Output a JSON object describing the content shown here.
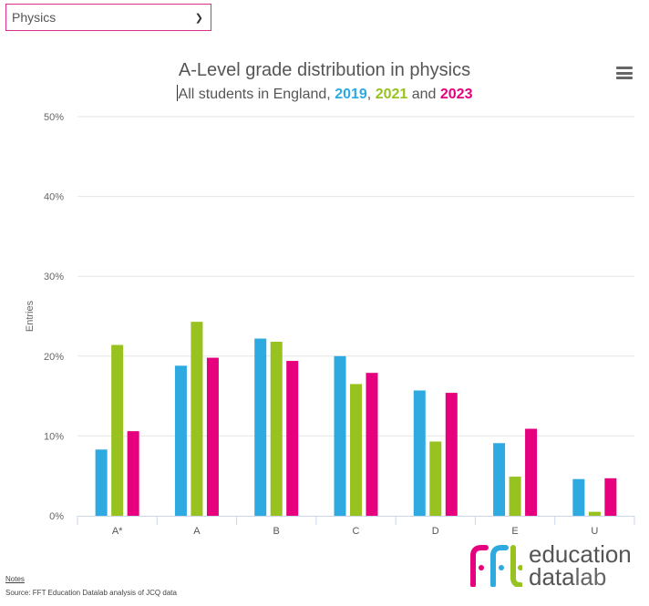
{
  "selector": {
    "value": "Physics"
  },
  "menu_icon": "hamburger-menu-icon",
  "chart_data": {
    "type": "bar",
    "title": "A-Level grade distribution in physics",
    "subtitle_prefix": "All students in England, ",
    "subtitle_sep1": ", ",
    "subtitle_sep2": " and ",
    "xlabel": "",
    "ylabel": "Entries",
    "ylim": [
      0,
      50
    ],
    "yticks": [
      0,
      10,
      20,
      30,
      40,
      50
    ],
    "ytick_labels": [
      "0%",
      "10%",
      "20%",
      "30%",
      "40%",
      "50%"
    ],
    "grid": true,
    "categories": [
      "A*",
      "A",
      "B",
      "C",
      "D",
      "E",
      "U"
    ],
    "series": [
      {
        "name": "2019",
        "color": "#2EAAE1",
        "values": [
          8.3,
          18.8,
          22.2,
          20.0,
          15.7,
          9.1,
          4.6
        ]
      },
      {
        "name": "2021",
        "color": "#97C21F",
        "values": [
          21.4,
          24.3,
          21.8,
          16.5,
          9.3,
          4.9,
          0.5
        ]
      },
      {
        "name": "2023",
        "color": "#E6007E",
        "values": [
          10.6,
          19.8,
          19.4,
          17.9,
          15.4,
          10.9,
          4.7
        ]
      }
    ]
  },
  "footer": {
    "notes": "Notes",
    "source": "Source: FFT Education Datalab analysis of JCQ data"
  },
  "logo": {
    "mark": "fft",
    "line1": "education",
    "line2_bold": "data",
    "line2_light": "lab"
  }
}
